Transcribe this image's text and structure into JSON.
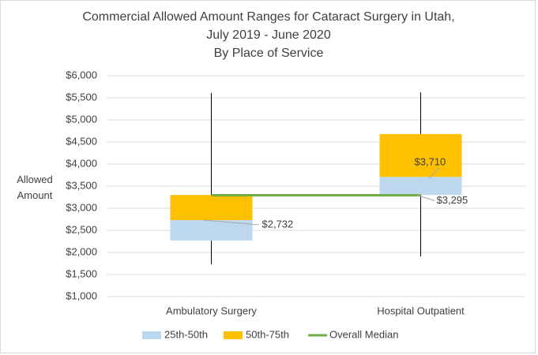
{
  "chart_data": {
    "type": "floating-box",
    "title": [
      "Commercial Allowed Amount Ranges for Cataract Surgery in Utah,",
      "July 2019 - June 2020",
      "By Place of Service"
    ],
    "y_label": "Allowed Amount",
    "categories": [
      "Ambulatory Surgery",
      "Hospital Outpatient"
    ],
    "series": [
      {
        "name": "25th-50th",
        "color": "#bdd7ee"
      },
      {
        "name": "50th-75th",
        "color": "#ffc000"
      }
    ],
    "boxes": [
      {
        "min": 1730,
        "q1": 2270,
        "median": 2732,
        "q3": 3300,
        "max": 5610,
        "median_label": "$2,732"
      },
      {
        "min": 1910,
        "q1": 3300,
        "median": 3710,
        "q3": 4680,
        "max": 5625,
        "median_label": "$3,710"
      }
    ],
    "overall_median": {
      "name": "Overall Median",
      "color": "#70ad47",
      "value": 3295,
      "label": "$3,295"
    },
    "ylim": [
      1000,
      6000
    ],
    "yticks": [
      {
        "value": 1000,
        "label": "$1,000"
      },
      {
        "value": 1500,
        "label": "$1,500"
      },
      {
        "value": 2000,
        "label": "$2,000"
      },
      {
        "value": 2500,
        "label": "$2,500"
      },
      {
        "value": 3000,
        "label": "$3,000"
      },
      {
        "value": 3500,
        "label": "$3,500"
      },
      {
        "value": 4000,
        "label": "$4,000"
      },
      {
        "value": 4500,
        "label": "$4,500"
      },
      {
        "value": 5000,
        "label": "$5,000"
      },
      {
        "value": 5500,
        "label": "$5,500"
      },
      {
        "value": 6000,
        "label": "$6,000"
      }
    ],
    "grid": true
  }
}
